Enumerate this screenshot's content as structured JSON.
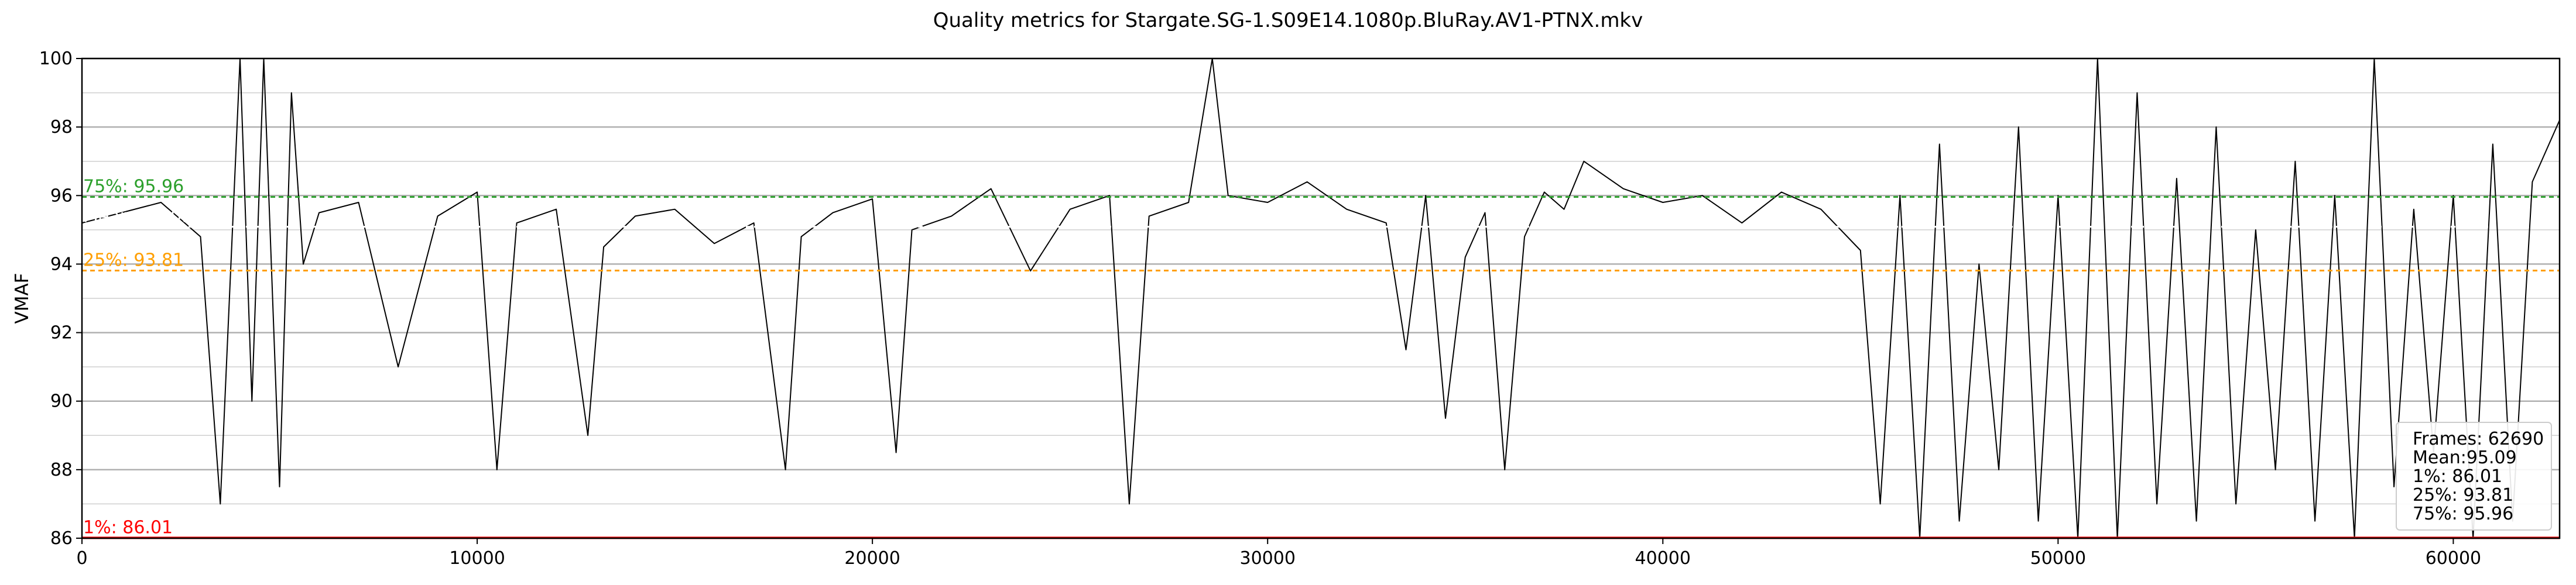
{
  "chart_data": {
    "type": "line",
    "title": "Quality metrics for Stargate.SG-1.S09E14.1080p.BluRay.AV1-PTNX.mkv",
    "xlabel": "",
    "ylabel": "VMAF",
    "xlim": [
      0,
      62690
    ],
    "ylim": [
      86,
      100
    ],
    "x_ticks": [
      0,
      10000,
      20000,
      30000,
      40000,
      50000,
      60000
    ],
    "y_ticks": [
      86,
      88,
      90,
      92,
      94,
      96,
      98,
      100
    ],
    "y_tick_labels": [
      "86",
      "88",
      "90",
      "92",
      "94",
      "96",
      "98",
      "100"
    ],
    "x_tick_labels": [
      "0",
      "10000",
      "20000",
      "30000",
      "40000",
      "50000",
      "60000"
    ],
    "grid": true,
    "series": [
      {
        "name": "",
        "color": "#000000",
        "x": [
          0,
          1000,
          2000,
          3000,
          3500,
          4000,
          4300,
          4600,
          5000,
          5300,
          5600,
          6000,
          7000,
          8000,
          9000,
          10000,
          10500,
          11000,
          12000,
          12800,
          13200,
          14000,
          15000,
          16000,
          17000,
          17800,
          18200,
          19000,
          20000,
          20600,
          21000,
          22000,
          23000,
          24000,
          25000,
          26000,
          26500,
          27000,
          28000,
          28600,
          29000,
          30000,
          31000,
          32000,
          33000,
          33500,
          34000,
          34500,
          35000,
          35500,
          36000,
          36500,
          37000,
          37500,
          38000,
          39000,
          40000,
          41000,
          42000,
          43000,
          44000,
          45000,
          45500,
          46000,
          46500,
          47000,
          47500,
          48000,
          48500,
          49000,
          49500,
          50000,
          50500,
          51000,
          51500,
          52000,
          52500,
          53000,
          53500,
          54000,
          54500,
          55000,
          55500,
          56000,
          56500,
          57000,
          57500,
          58000,
          58500,
          59000,
          59500,
          60000,
          60500,
          61000,
          61500,
          62000,
          62690
        ],
        "y": [
          95.2,
          95.5,
          95.8,
          94.8,
          87.0,
          100.0,
          90.0,
          100.0,
          87.5,
          99.0,
          94.0,
          95.5,
          95.8,
          91.0,
          95.4,
          96.1,
          88.0,
          95.2,
          95.6,
          89.0,
          94.5,
          95.4,
          95.6,
          94.6,
          95.2,
          88.0,
          94.8,
          95.5,
          95.9,
          88.5,
          95.0,
          95.4,
          96.2,
          93.8,
          95.6,
          96.0,
          87.0,
          95.4,
          95.8,
          100.0,
          96.0,
          95.8,
          96.4,
          95.6,
          95.2,
          91.5,
          96.0,
          89.5,
          94.2,
          95.5,
          88.0,
          94.8,
          96.1,
          95.6,
          97.0,
          96.2,
          95.8,
          96.0,
          95.2,
          96.1,
          95.6,
          94.4,
          87.0,
          96.0,
          86.0,
          97.5,
          86.5,
          94.0,
          88.0,
          98.0,
          86.5,
          96.0,
          86.0,
          100.0,
          86.0,
          99.0,
          87.0,
          96.5,
          86.5,
          98.0,
          87.0,
          95.0,
          88.0,
          97.0,
          86.5,
          96.0,
          86.0,
          100.0,
          87.5,
          95.6,
          88.5,
          96.0,
          86.0,
          97.5,
          86.5,
          96.4,
          98.2
        ]
      }
    ],
    "reference_lines": [
      {
        "name": "75%",
        "label": "75%: 95.96",
        "value": 95.96,
        "color": "#2ca02c",
        "style": "dashed"
      },
      {
        "name": "Mean",
        "label": "Mean: 95.09",
        "value": 95.09,
        "color": "#ffffff",
        "style": "dashed"
      },
      {
        "name": "25%",
        "label": "25%: 93.81",
        "value": 93.81,
        "color": "#ff9f00",
        "style": "dashed"
      },
      {
        "name": "1%",
        "label": "1%: 86.01",
        "value": 86.01,
        "color": "#ff0000",
        "style": "solid"
      }
    ],
    "legend": {
      "placement": "bottom-right",
      "lines": [
        "Frames: 62690",
        "Mean:95.09",
        "1%: 86.01",
        "25%: 93.81",
        "75%: 95.96"
      ]
    }
  }
}
